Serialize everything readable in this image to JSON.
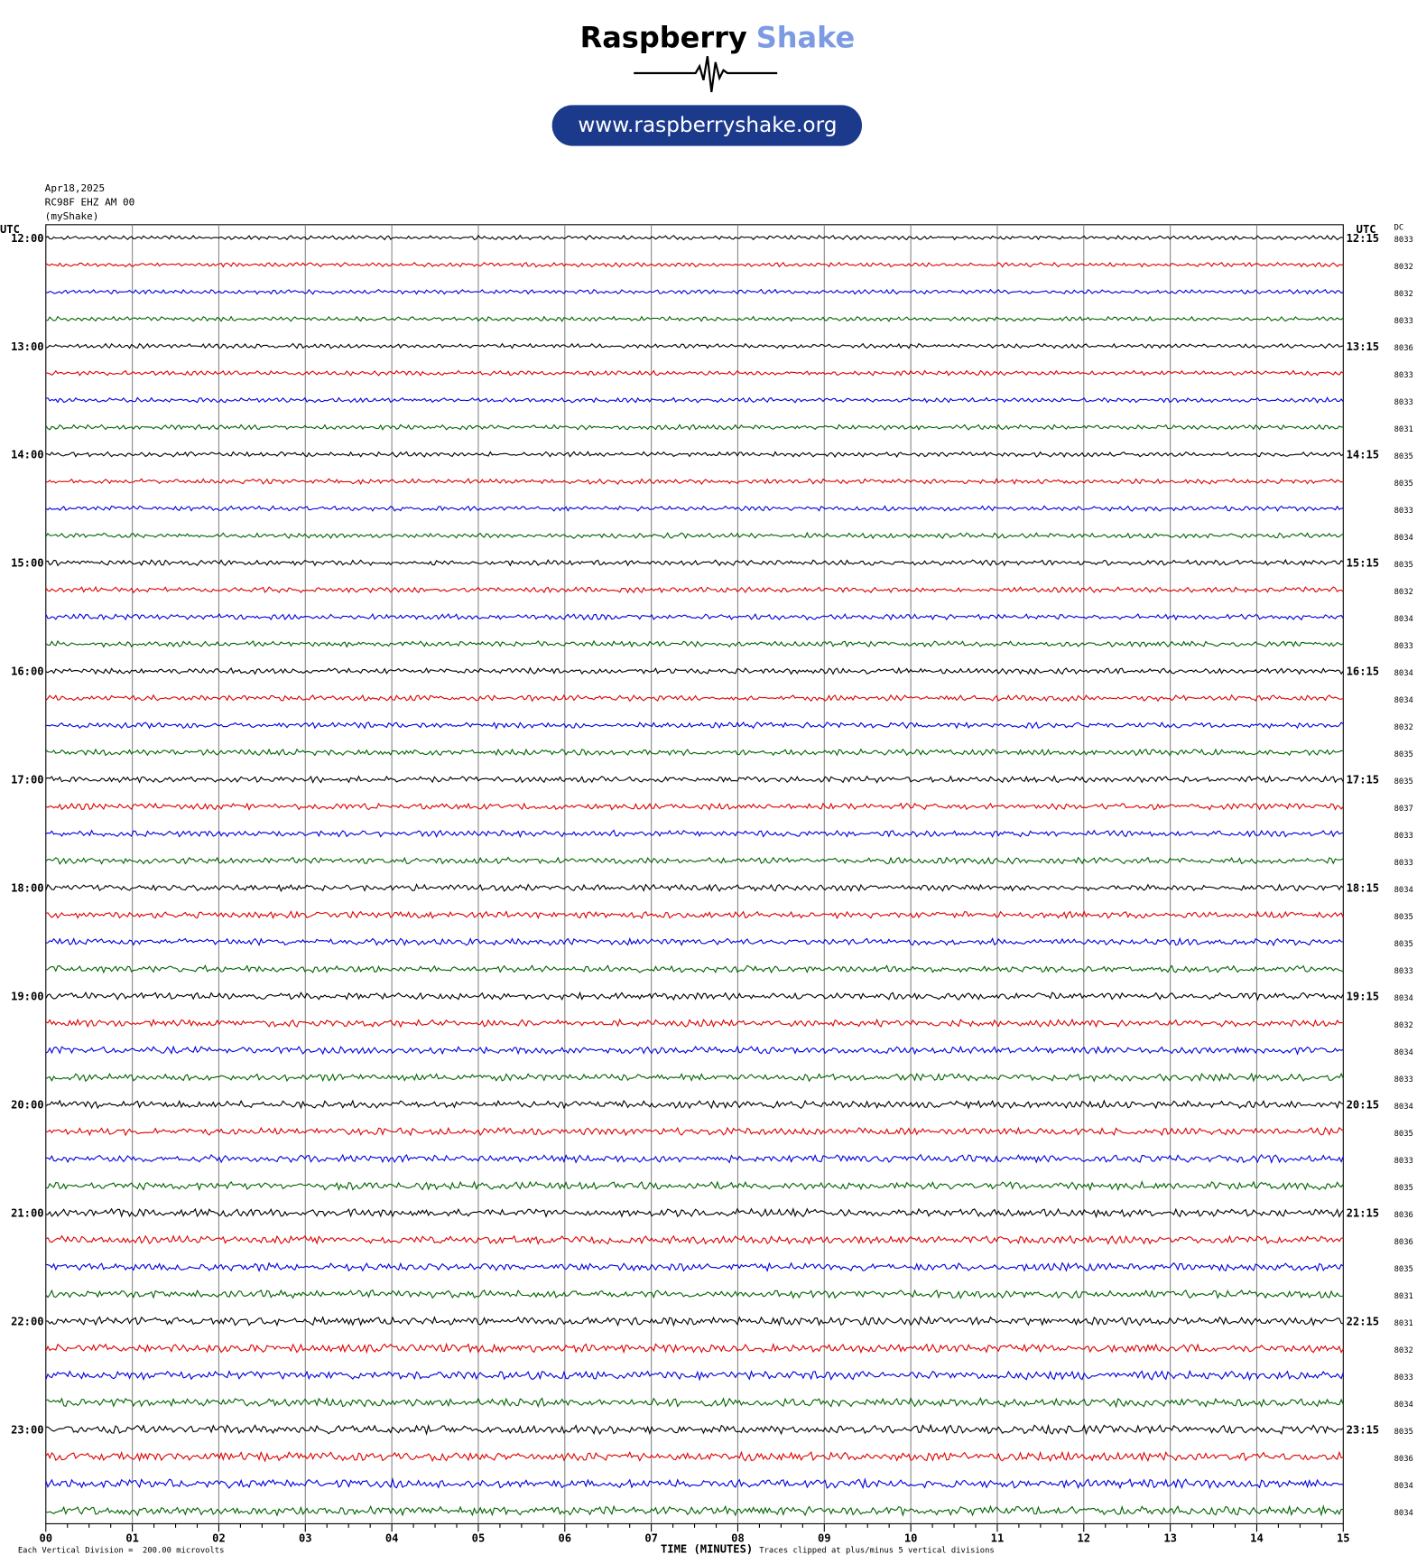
{
  "header": {
    "logo_main": "Raspberry",
    "logo_accent": "Shake",
    "url": "www.raspberryshake.org"
  },
  "station": {
    "date": "Apr18,2025",
    "channel": "RC98F EHZ AM 00",
    "network": "(myShake)"
  },
  "axis": {
    "left_title": "UTC",
    "right_title": "UTC",
    "dc_title": "DC",
    "left_times": [
      "12:00",
      "13:00",
      "14:00",
      "15:00",
      "16:00",
      "17:00",
      "18:00",
      "19:00",
      "20:00",
      "21:00",
      "22:00",
      "23:00"
    ],
    "right_times": [
      "12:15",
      "13:15",
      "14:15",
      "15:15",
      "16:15",
      "17:15",
      "18:15",
      "19:15",
      "20:15",
      "21:15",
      "22:15",
      "23:15"
    ],
    "dc_values": [
      "8033",
      "8032",
      "8032",
      "8033",
      "8036",
      "8033",
      "8033",
      "8031",
      "8035",
      "8035",
      "8033",
      "8034",
      "8035",
      "8032",
      "8034",
      "8033",
      "8034",
      "8034",
      "8032",
      "8035",
      "8035",
      "8037",
      "8033",
      "8033",
      "8034",
      "8035",
      "8035",
      "8033",
      "8034",
      "8032",
      "8034",
      "8033",
      "8034",
      "8035",
      "8033",
      "8035",
      "8036",
      "8036",
      "8035",
      "8031",
      "8031",
      "8032",
      "8033",
      "8034",
      "8035",
      "8036",
      "8034",
      "8034"
    ],
    "minutes": [
      "00",
      "01",
      "02",
      "03",
      "04",
      "05",
      "06",
      "07",
      "08",
      "09",
      "10",
      "11",
      "12",
      "13",
      "14",
      "15"
    ],
    "x_title": "TIME (MINUTES)"
  },
  "footer": {
    "scale_note": "Each Vertical Division =  200.00 microvolts",
    "clip_note": "Traces clipped at plus/minus 5 vertical divisions"
  }
}
